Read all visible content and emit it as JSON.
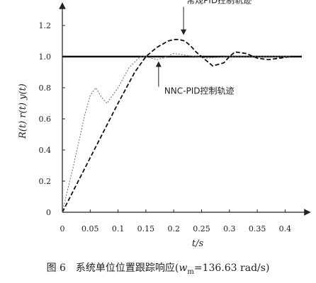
{
  "chart_data": {
    "type": "line",
    "title": "",
    "caption": "图 6　系统单位位置跟踪响应(w_m=136.63 rad/s)",
    "caption_parts": {
      "prefix": "图 6　系统单位位置跟踪响应(",
      "w": "w",
      "sub": "m",
      "suffix": "=136.63 rad/s)"
    },
    "xlabel": "t/s",
    "ylabel": "R(t) r(t) y(t)",
    "xlim": [
      0,
      0.43
    ],
    "ylim": [
      0,
      1.3
    ],
    "xticks": [
      0,
      0.05,
      0.1,
      0.15,
      0.2,
      0.25,
      0.3,
      0.35,
      0.4
    ],
    "xtick_labels": [
      "0",
      "0.05",
      "0.1",
      "0.15",
      "0.2",
      "0.25",
      "0.3",
      "0.35",
      "0.4"
    ],
    "yticks": [
      0,
      0.2,
      0.4,
      0.6,
      0.8,
      1.0,
      1.2
    ],
    "ytick_labels": [
      "0",
      "0.2",
      "0.4",
      "0.6",
      "0.8",
      "1.0",
      "1.2"
    ],
    "grid": false,
    "annotations": [
      {
        "text": "常规PID控制轨迹",
        "x": 0.21,
        "y": 1.12
      },
      {
        "text": "NNC-PID控制轨迹",
        "x": 0.155,
        "y": 0.97
      }
    ],
    "series": [
      {
        "style": "solid",
        "x": [
          0,
          0.43
        ],
        "y": [
          1.0,
          1.0
        ]
      },
      {
        "style": "dashed",
        "x": [
          0,
          0.05,
          0.1,
          0.13,
          0.15,
          0.17,
          0.19,
          0.2,
          0.21,
          0.22,
          0.23,
          0.24,
          0.25,
          0.27,
          0.29,
          0.3,
          0.31,
          0.33,
          0.35,
          0.37,
          0.39,
          0.41
        ],
        "y": [
          0,
          0.35,
          0.7,
          0.9,
          1.0,
          1.06,
          1.1,
          1.11,
          1.11,
          1.1,
          1.07,
          1.03,
          1.0,
          0.94,
          0.96,
          1.0,
          1.03,
          1.02,
          0.99,
          0.98,
          0.99,
          1.0
        ]
      },
      {
        "style": "dotted",
        "x": [
          0,
          0.02,
          0.04,
          0.05,
          0.06,
          0.07,
          0.08,
          0.1,
          0.12,
          0.14,
          0.15,
          0.16,
          0.17,
          0.18,
          0.2,
          0.22,
          0.24,
          0.26,
          0.3,
          0.35,
          0.41
        ],
        "y": [
          0,
          0.3,
          0.62,
          0.75,
          0.8,
          0.74,
          0.7,
          0.8,
          0.93,
          1.0,
          1.0,
          0.99,
          0.98,
          0.99,
          1.02,
          1.01,
          1.0,
          0.99,
          1.0,
          1.0,
          1.0
        ]
      }
    ]
  }
}
